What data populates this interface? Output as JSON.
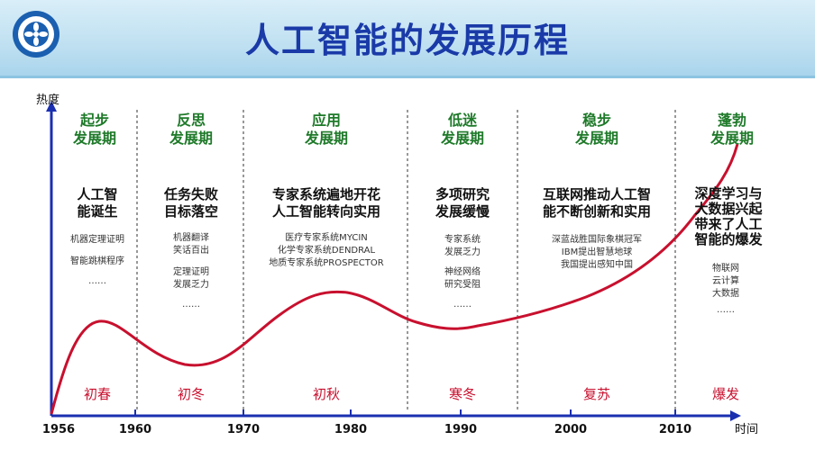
{
  "header": {
    "title": "人工智能的发展历程"
  },
  "axes": {
    "y_label": "热度",
    "x_label": "时间"
  },
  "years": [
    "1956",
    "1960",
    "1970",
    "1980",
    "1990",
    "2000",
    "2010"
  ],
  "phases": [
    {
      "name1": "起步",
      "name2": "发展期",
      "event1": "人工智",
      "event2": "能诞生",
      "notes": [
        "机器定理证明",
        "智能跳棋程序",
        "……"
      ],
      "season": "初春"
    },
    {
      "name1": "反思",
      "name2": "发展期",
      "event1": "任务失败",
      "event2": "目标落空",
      "notes": [
        "机器翻译",
        "笑话百出",
        "定理证明",
        "发展乏力",
        "……"
      ],
      "season": "初冬"
    },
    {
      "name1": "应用",
      "name2": "发展期",
      "event1": "专家系统遍地开花",
      "event2": "人工智能转向实用",
      "notes": [
        "医疗专家系统MYCIN",
        "化学专家系统DENDRAL",
        "地质专家系统PROSPECTOR"
      ],
      "season": "初秋"
    },
    {
      "name1": "低迷",
      "name2": "发展期",
      "event1": "多项研究",
      "event2": "发展缓慢",
      "notes": [
        "专家系统",
        "发展乏力",
        "神经网络",
        "研究受阻",
        "……"
      ],
      "season": "寒冬"
    },
    {
      "name1": "稳步",
      "name2": "发展期",
      "event1": "互联网推动人工智",
      "event2": "能不断创新和实用",
      "notes": [
        "深蓝战胜国际象棋冠军",
        "IBM提出智慧地球",
        "我国提出感知中国"
      ],
      "season": "复苏"
    },
    {
      "name1": "蓬勃",
      "name2": "发展期",
      "event1": "深度学习与",
      "event2": "大数据兴起",
      "event3": "带来了人工",
      "event4": "智能的爆发",
      "notes": [
        "物联网",
        "云计算",
        "大数据",
        "……"
      ],
      "season": "爆发"
    }
  ],
  "colors": {
    "curve": "#c8102e",
    "axis": "#1a2fb0",
    "phase_text": "#1f7a2a",
    "title": "#1a3aa8",
    "header_bg": "#bfe0f1"
  }
}
